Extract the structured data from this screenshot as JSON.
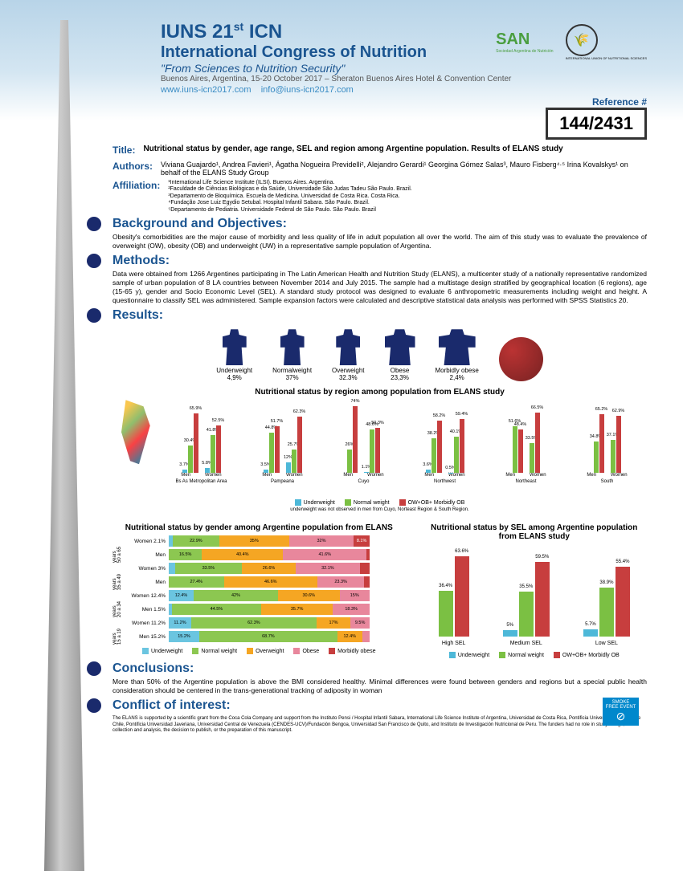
{
  "header": {
    "title_line1": "IUNS 21",
    "title_sup": "st",
    "title_suffix": "ICN",
    "title_line2": "International Congress of Nutrition",
    "tagline": "\"From Sciences to Nutrition Security\"",
    "venue": "Buenos Aires, Argentina, 15-20 October 2017 – Sheraton Buenos Aires Hotel & Convention Center",
    "website": "www.iuns-icn2017.com",
    "email": "info@iuns-icn2017.com",
    "ref_label": "Reference #",
    "ref_num": "144/2431",
    "san_logo": "SAN",
    "san_sub": "Sociedad Argentina de Nutrición",
    "iuns_sub": "INTERNATIONAL UNION OF NUTRITIONAL SCIENCES"
  },
  "labels": {
    "title": "Title:",
    "authors": "Authors:",
    "affiliation": "Affiliation:",
    "background": "Background and Objectives:",
    "methods": "Methods:",
    "results": "Results:",
    "conclusions": "Conclusions:",
    "conflict": "Conflict of interest:"
  },
  "title_text": "Nutritional status by gender, age range, SEL and region among Argentine population. Results of ELANS study",
  "authors_text": "Viviana Guajardo¹, Andrea Favieri¹, Ágatha Nogueira Previdelli², Alejandro Gerardi¹ Georgina Gómez Salas³, Mauro Fisberg⁴·⁵ Irina Kovalskys¹ on behalf of the ELANS Study Group",
  "affiliations": "¹International Life Science Institute (ILSI). Buenos Aires. Argentina.\n²Faculdade de Ciências Biológicas e da Saúde, Universidade São Judas Tadeu São Paulo. Brazil.\n³Departamento de Bioquímica. Escuela de Medicina. Universidad de Costa Rica. Costa Rica.\n⁴Fundação Jose Luiz Egydio Setubal. Hospital Infantil Sabara. São Paulo. Brazil.\n⁵Departamento de Pediatria. Universidade Federal de São Paulo. São Paulo. Brazil",
  "background_text": "Obesity's comorbidities are the major cause of morbidity and less quality of life in adult population all over the world. The aim of this study was to evaluate the prevalence of overweight (OW), obesity (OB) and underweight (UW) in a representative sample population of Argentina.",
  "methods_text": "Data were obtained from 1266 Argentines participating in The Latin American Health and Nutrition Study (ELANS), a multicenter study of a nationally representative randomized sample of urban population of 8 LA countries between November 2014 and July 2015. The sample had a multistage design stratified by geographical location (6 regions), age (15-65 y), gender and Socio Economic Level (SEL). A standard study protocol was designed to evaluate 6 anthropometric measurements including weight and height. A questionnaire to classify SEL was administered. Sample expansion factors were calculated and descriptive statistical data analysis was performed with SPSS Statistics 20.",
  "figures": [
    {
      "label": "Underweight",
      "pct": "4,9%"
    },
    {
      "label": "Normalweight",
      "pct": "37%"
    },
    {
      "label": "Overweight",
      "pct": "32.3%"
    },
    {
      "label": "Obese",
      "pct": "23,3%"
    },
    {
      "label": "Morbidly obese",
      "pct": "2,4%"
    }
  ],
  "region_chart": {
    "title": "Nutritional status by region among population from ELANS study",
    "regions": [
      {
        "name": "Bs As Metropolitan Area",
        "men": {
          "uw": 3.7,
          "nw": 30.4,
          "ow": 65.9
        },
        "women": {
          "uw": 5.8,
          "nw": 41.8,
          "ow": 52.5
        }
      },
      {
        "name": "Pampeana",
        "men": {
          "uw": 3.5,
          "nw": 44.8,
          "ow": 51.7
        },
        "women": {
          "uw": 12.0,
          "nw": 25.7,
          "ow": 62.3
        }
      },
      {
        "name": "Cuyo",
        "men": {
          "uw": 0,
          "nw": 26.0,
          "ow": 74.0
        },
        "women": {
          "uw": 1.1,
          "nw": 48.6,
          "ow": 50.3
        }
      },
      {
        "name": "Northwest",
        "men": {
          "uw": 3.6,
          "nw": 38.2,
          "ow": 58.2
        },
        "women": {
          "uw": 0.5,
          "nw": 40.1,
          "ow": 59.4
        }
      },
      {
        "name": "Northeast",
        "men": {
          "uw": 0,
          "nw": 51.6,
          "ow": 48.4
        },
        "women": {
          "uw": 0,
          "nw": 33.5,
          "ow": 66.5
        }
      },
      {
        "name": "South",
        "men": {
          "uw": 0,
          "nw": 34.8,
          "ow": 65.2
        },
        "women": {
          "uw": 0,
          "nw": 37.1,
          "ow": 62.9
        }
      }
    ],
    "legend": [
      "Underweight",
      "Normal weight",
      "OW+OB+ Morbidly OB"
    ],
    "colors": {
      "uw": "#4db8d8",
      "nw": "#7bc043",
      "ow": "#c73e3e"
    },
    "footnote": "underweight was not observed in men from Cuyo, Norteast Region & South Region.",
    "men_label": "Men",
    "women_label": "Women",
    "ymax": 80
  },
  "gender_chart": {
    "title": "Nutritional status by gender among Argentine population from ELANS",
    "rows": [
      {
        "group": "50 a 65 years",
        "label": "Women",
        "uw": 2.1,
        "nw": 22.9,
        "ow": 35.0,
        "ob": 32.0,
        "mo": 8.1
      },
      {
        "group": "",
        "label": "Men",
        "uw": 0,
        "nw": 16.5,
        "ow": 40.4,
        "ob": 41.6,
        "mo": 1.4
      },
      {
        "group": "35 a 49 years",
        "label": "Women",
        "uw": 3.0,
        "nw": 33.5,
        "ow": 26.6,
        "ob": 32.1,
        "mo": 4.7
      },
      {
        "group": "",
        "label": "Men",
        "uw": 0,
        "nw": 27.4,
        "ow": 46.6,
        "ob": 23.3,
        "mo": 2.7
      },
      {
        "group": "20 a 34 years",
        "label": "Women",
        "uw": 12.4,
        "nw": 42.0,
        "ow": 30.6,
        "ob": 15.0,
        "mo": 0
      },
      {
        "group": "",
        "label": "Men",
        "uw": 1.5,
        "nw": 44.5,
        "ow": 35.7,
        "ob": 18.3,
        "mo": 0
      },
      {
        "group": "15 a 19 years",
        "label": "Women",
        "uw": 11.2,
        "nw": 62.3,
        "ow": 17.0,
        "ob": 9.5,
        "mo": 0
      },
      {
        "group": "",
        "label": "Men",
        "uw": 15.2,
        "nw": 68.7,
        "ow": 12.4,
        "ob": 3.8,
        "mo": 0
      }
    ],
    "legend": [
      "Underweight",
      "Normal weight",
      "Overweight",
      "Obese",
      "Morbidly obese"
    ],
    "colors": {
      "uw": "#6bc5e0",
      "nw": "#8cc751",
      "ow": "#f5a623",
      "ob": "#e8879c",
      "mo": "#c73e3e"
    }
  },
  "sel_chart": {
    "title": "Nutritional status by SEL among Argentine population from ELANS study",
    "groups": [
      {
        "label": "High SEL",
        "uw": 0,
        "nw": 36.4,
        "ow": 63.6
      },
      {
        "label": "Medium SEL",
        "uw": 5.0,
        "nw": 35.5,
        "ow": 59.5
      },
      {
        "label": "Low SEL",
        "uw": 5.7,
        "nw": 38.9,
        "ow": 55.4
      }
    ],
    "legend": [
      "Underweight",
      "Normal weight",
      "OW+OB+ Morbidly OB"
    ],
    "colors": {
      "uw": "#4db8d8",
      "nw": "#7bc043",
      "ow": "#c73e3e"
    },
    "ymax": 70
  },
  "conclusions_text": "More than 50% of the Argentine population is above the BMI considered healthy. Minimal differences were found between genders and regions but a special public health consideration should be centered in the trans-generational tracking of adiposity in woman",
  "conflict_text": "The ELANS is supported by a scientific grant from the Coca Cola Company and support from the Instituto Pensi / Hospital Infantil Sabara, International Life Science Institute of Argentina, Universidad de Costa Rica, Pontificia Universidad Católica de Chile, Pontificia Universidad Javeriana, Universidad Central de Venezuela (CENDES-UCV)/Fundación Bengoa, Universidad San Francisco de Quito, and Instituto de Investigación Nutricional de Peru. The funders had no role in study design, data collection and analysis, the decision to publish, or the preparation of this manuscript.",
  "smoke_free": "SMOKE FREE EVENT"
}
